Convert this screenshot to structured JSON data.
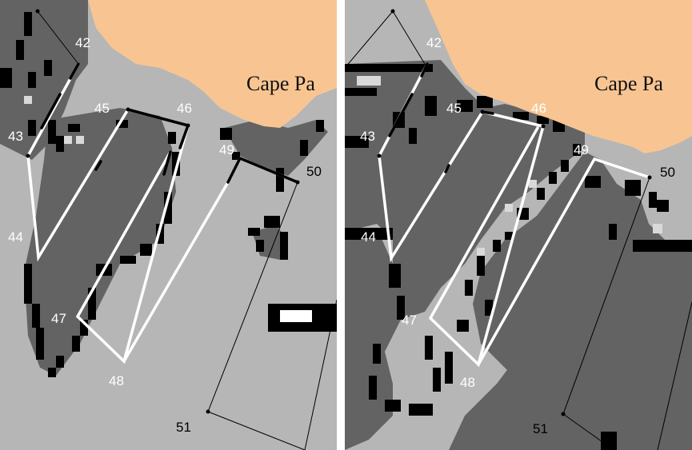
{
  "colors": {
    "land": "#f8c592",
    "light_gray": "#b6b6b6",
    "dark_gray": "#636363",
    "black": "#000000",
    "white": "#ffffff"
  },
  "panels": [
    {
      "id": "left",
      "place_label": "Cape Pa",
      "point_labels": [
        "42",
        "43",
        "44",
        "45",
        "46",
        "47",
        "48",
        "49",
        "50",
        "51"
      ]
    },
    {
      "id": "right",
      "place_label": "Cape Pa",
      "point_labels": [
        "42",
        "43",
        "44",
        "45",
        "46",
        "47",
        "48",
        "49",
        "50",
        "51"
      ]
    }
  ]
}
